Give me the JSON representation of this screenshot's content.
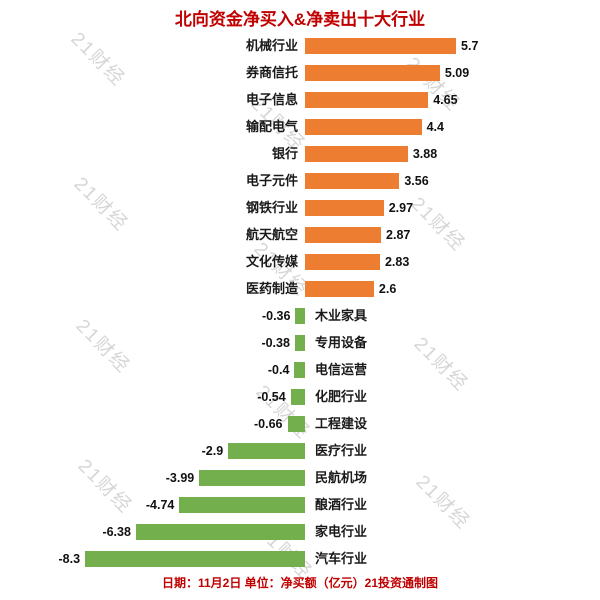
{
  "title": "北向资金净买入&净卖出十大行业",
  "footer": "日期：11月2日 单位：净买额（亿元）21投资通制图",
  "watermark": "21财经",
  "colors": {
    "positive_bar": "#ED7D31",
    "negative_bar": "#73AF4C",
    "title_red": "#C00000",
    "footer_red": "#C00000",
    "value_text": "#111111",
    "watermark_gray": "#C9C9C9"
  },
  "chart_data": {
    "type": "bar",
    "orientation": "horizontal",
    "title": "北向资金净买入&净卖出十大行业",
    "unit": "净买额（亿元）",
    "xlim": [
      -9,
      7
    ],
    "grid": false,
    "legend": "none",
    "categories": [
      "机械行业",
      "券商信托",
      "电子信息",
      "输配电气",
      "银行",
      "电子元件",
      "钢铁行业",
      "航天航空",
      "文化传媒",
      "医药制造",
      "木业家具",
      "专用设备",
      "电信运营",
      "化肥行业",
      "工程建设",
      "医疗行业",
      "民航机场",
      "酿酒行业",
      "家电行业",
      "汽车行业"
    ],
    "values": [
      5.7,
      5.09,
      4.65,
      4.4,
      3.88,
      3.56,
      2.97,
      2.87,
      2.83,
      2.6,
      -0.36,
      -0.38,
      -0.4,
      -0.54,
      -0.66,
      -2.9,
      -3.99,
      -4.74,
      -6.38,
      -8.3
    ],
    "value_labels": [
      "5.7",
      "5.09",
      "4.65",
      "4.4",
      "3.88",
      "3.56",
      "2.97",
      "2.87",
      "2.83",
      "2.6",
      "-0.36",
      "-0.38",
      "-0.4",
      "-0.54",
      "-0.66",
      "-2.9",
      "-3.99",
      "-4.74",
      "-6.38",
      "-8.3"
    ]
  }
}
